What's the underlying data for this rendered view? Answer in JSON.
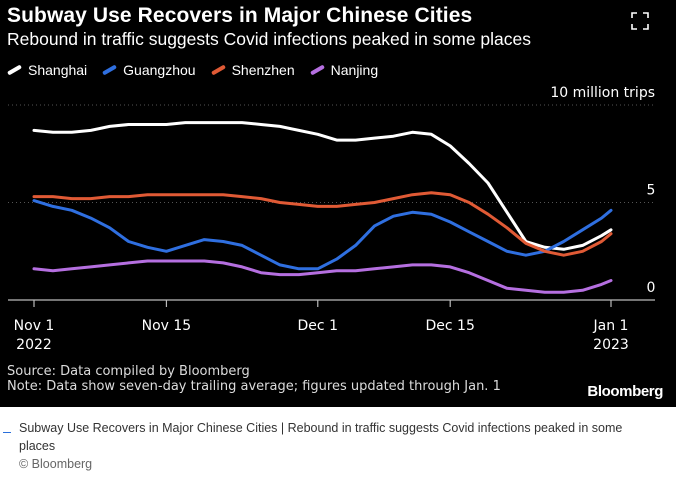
{
  "chart_data": {
    "type": "line",
    "title": "Subway Use Recovers in Major Chinese Cities",
    "subtitle": "Rebound in traffic suggests Covid infections peaked in some places",
    "ylabel": "10 million trips",
    "ylim": [
      0,
      10
    ],
    "yticks": [
      "5",
      "0"
    ],
    "xticks": [
      {
        "day": 0,
        "label": "Nov 1",
        "year": "2022"
      },
      {
        "day": 14,
        "label": "Nov 15",
        "year": ""
      },
      {
        "day": 30,
        "label": "Dec 1",
        "year": ""
      },
      {
        "day": 44,
        "label": "Dec 15",
        "year": ""
      },
      {
        "day": 61,
        "label": "Jan 1",
        "year": "2023"
      }
    ],
    "x": [
      0,
      2,
      4,
      6,
      8,
      10,
      12,
      14,
      16,
      18,
      20,
      22,
      24,
      26,
      28,
      30,
      32,
      34,
      36,
      38,
      40,
      42,
      44,
      46,
      48,
      50,
      52,
      54,
      56,
      58,
      60,
      61
    ],
    "series": [
      {
        "name": "Shanghai",
        "color": "#ffffff",
        "values": [
          8.7,
          8.6,
          8.6,
          8.7,
          8.9,
          9.0,
          9.0,
          9.0,
          9.1,
          9.1,
          9.1,
          9.1,
          9.0,
          8.9,
          8.7,
          8.5,
          8.2,
          8.2,
          8.3,
          8.4,
          8.6,
          8.5,
          7.9,
          7.0,
          6.0,
          4.5,
          3.0,
          2.7,
          2.6,
          2.8,
          3.3,
          3.6
        ]
      },
      {
        "name": "Guangzhou",
        "color": "#2f6fe0",
        "values": [
          5.1,
          4.8,
          4.6,
          4.2,
          3.7,
          3.0,
          2.7,
          2.5,
          2.8,
          3.1,
          3.0,
          2.8,
          2.3,
          1.8,
          1.6,
          1.6,
          2.1,
          2.8,
          3.8,
          4.3,
          4.5,
          4.4,
          4.0,
          3.5,
          3.0,
          2.5,
          2.3,
          2.5,
          3.0,
          3.6,
          4.2,
          4.6
        ]
      },
      {
        "name": "Shenzhen",
        "color": "#e05a35",
        "values": [
          5.3,
          5.3,
          5.2,
          5.2,
          5.3,
          5.3,
          5.4,
          5.4,
          5.4,
          5.4,
          5.4,
          5.3,
          5.2,
          5.0,
          4.9,
          4.8,
          4.8,
          4.9,
          5.0,
          5.2,
          5.4,
          5.5,
          5.4,
          5.0,
          4.4,
          3.7,
          2.9,
          2.5,
          2.3,
          2.5,
          3.0,
          3.4
        ]
      },
      {
        "name": "Nanjing",
        "color": "#b56fe0",
        "values": [
          1.6,
          1.5,
          1.6,
          1.7,
          1.8,
          1.9,
          2.0,
          2.0,
          2.0,
          2.0,
          1.9,
          1.7,
          1.4,
          1.3,
          1.3,
          1.4,
          1.5,
          1.5,
          1.6,
          1.7,
          1.8,
          1.8,
          1.7,
          1.4,
          1.0,
          0.6,
          0.5,
          0.4,
          0.4,
          0.5,
          0.8,
          1.0
        ]
      }
    ],
    "source": "Source: Data compiled by Bloomberg",
    "note": "Note: Data show seven-day trailing average; figures updated through Jan. 1",
    "brand": "Bloomberg"
  },
  "caption": {
    "text": "Subway Use Recovers in Major Chinese Cities | Rebound in traffic suggests Covid infections peaked in some places",
    "credit": "© Bloomberg"
  },
  "colors": {
    "background": "#000000",
    "gridline": "#555555",
    "text": "#ffffff"
  },
  "icons": {
    "expand": "expand-icon"
  }
}
